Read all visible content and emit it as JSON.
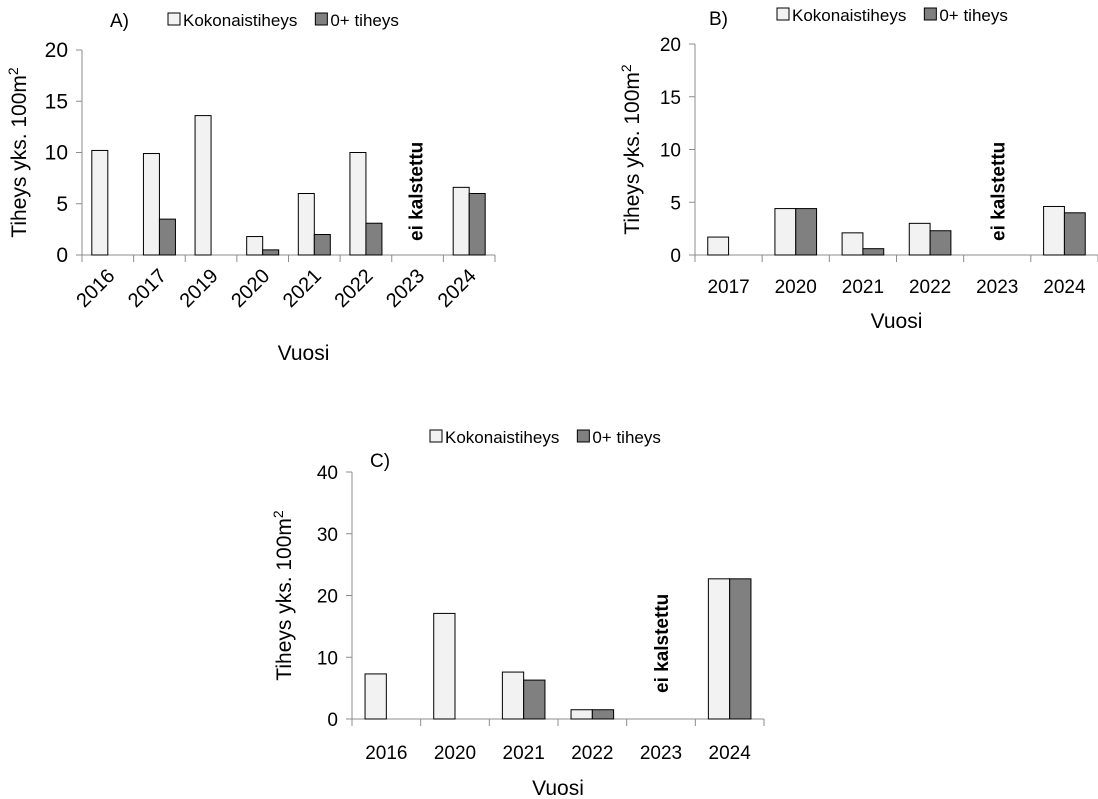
{
  "colors": {
    "total": "#f2f2f2",
    "zero": "#808080"
  },
  "chart_data": [
    {
      "type": "bar",
      "panel_label": "A)",
      "title": "",
      "xlabel": "Vuosi",
      "ylabel_main": "Tiheys yks. 100m",
      "ylabel_sup": "2",
      "ylim": [
        0,
        20
      ],
      "yticks": [
        0,
        5,
        10,
        15,
        20
      ],
      "categories": [
        "2016",
        "2017",
        "2019",
        "2020",
        "2021",
        "2022",
        "2023",
        "2024"
      ],
      "series": [
        {
          "name": "Kokonaistiheys",
          "values": [
            10.2,
            9.9,
            13.6,
            1.8,
            6.0,
            10.0,
            null,
            6.6
          ]
        },
        {
          "name": "0+ tiheys",
          "values": [
            0,
            3.5,
            0,
            0.5,
            2.0,
            3.1,
            null,
            6.0
          ]
        }
      ],
      "annotations": [
        {
          "category": "2023",
          "text": "ei kalstettu"
        }
      ],
      "legend": "top"
    },
    {
      "type": "bar",
      "panel_label": "B)",
      "title": "",
      "xlabel": "Vuosi",
      "ylabel_main": "Tiheys yks. 100m",
      "ylabel_sup": "2",
      "ylim": [
        0,
        20
      ],
      "yticks": [
        0,
        5,
        10,
        15,
        20
      ],
      "categories": [
        "2017",
        "2020",
        "2021",
        "2022",
        "2023",
        "2024"
      ],
      "series": [
        {
          "name": "Kokonaistiheys",
          "values": [
            1.7,
            4.4,
            2.1,
            3.0,
            null,
            4.6
          ]
        },
        {
          "name": "0+ tiheys",
          "values": [
            0,
            4.4,
            0.6,
            2.3,
            null,
            4.0
          ]
        }
      ],
      "annotations": [
        {
          "category": "2023",
          "text": "ei kalstettu"
        }
      ],
      "legend": "top"
    },
    {
      "type": "bar",
      "panel_label": "C)",
      "title": "",
      "xlabel": "Vuosi",
      "ylabel_main": "Tiheys yks. 100m",
      "ylabel_sup": "2",
      "ylim": [
        0,
        40
      ],
      "yticks": [
        0,
        10,
        20,
        30,
        40
      ],
      "categories": [
        "2016",
        "2020",
        "2021",
        "2022",
        "2023",
        "2024"
      ],
      "series": [
        {
          "name": "Kokonaistiheys",
          "values": [
            7.3,
            17.1,
            7.6,
            1.5,
            null,
            22.7
          ]
        },
        {
          "name": "0+ tiheys",
          "values": [
            0,
            0,
            6.3,
            1.5,
            null,
            22.7
          ]
        }
      ],
      "annotations": [
        {
          "category": "2023",
          "text": "ei kalstettu"
        }
      ],
      "legend": "top"
    }
  ]
}
